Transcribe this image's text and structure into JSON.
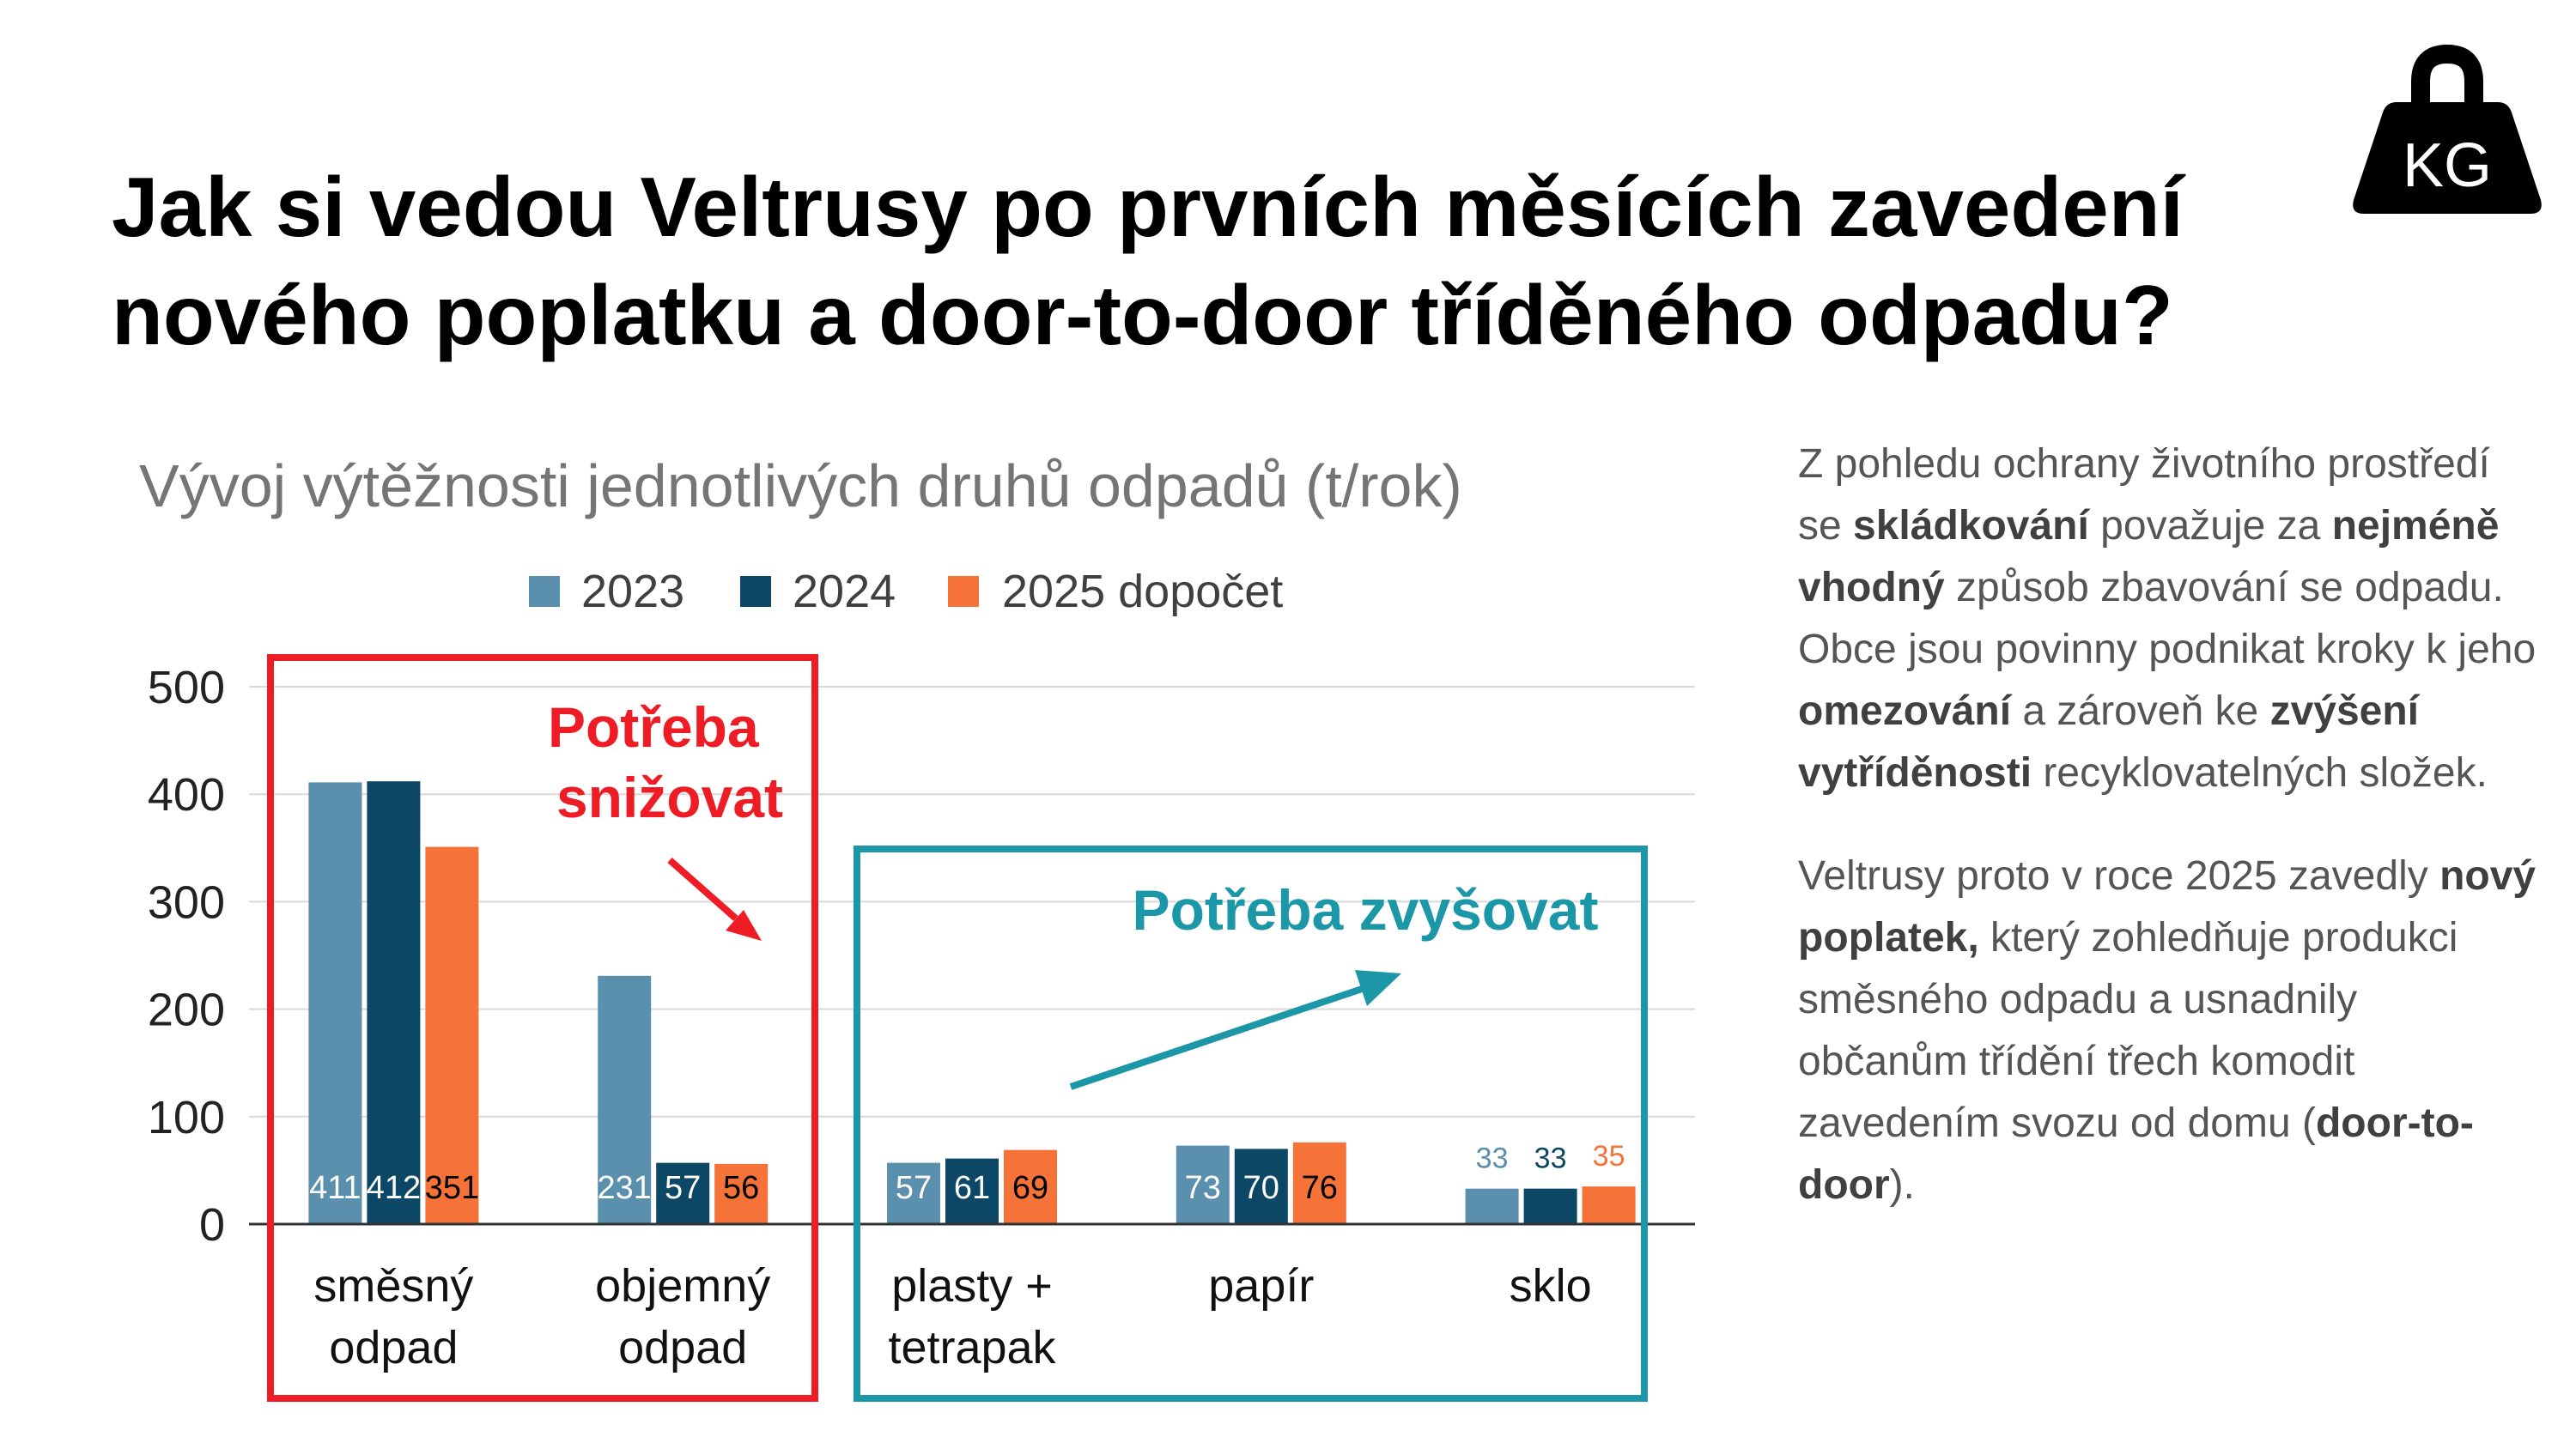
{
  "title": {
    "line1": "Jak si vedou Veltrusy po prvních měsících zavedení",
    "line2": "nového poplatku a door-to-door tříděného odpadu?"
  },
  "icon": {
    "name": "kg-weight-icon",
    "label": "KG"
  },
  "chart_data": {
    "type": "bar",
    "title": "Vývoj výtěžnosti jednotlivých druhů odpadů (t/rok)",
    "categories": [
      [
        "směsný",
        "odpad"
      ],
      [
        "objemný",
        "odpad"
      ],
      [
        "plasty +",
        "tetrapak"
      ],
      [
        "papír"
      ],
      [
        "sklo"
      ]
    ],
    "series": [
      {
        "name": "2023",
        "color": "#5b8fae",
        "values": [
          411,
          231,
          57,
          73,
          33
        ]
      },
      {
        "name": "2024",
        "color": "#0d4766",
        "values": [
          412,
          57,
          61,
          70,
          33
        ]
      },
      {
        "name": "2025 dopočet",
        "color": "#f57338",
        "values": [
          351,
          56,
          69,
          76,
          35
        ]
      }
    ],
    "ylim": [
      0,
      500
    ],
    "yticks": [
      0,
      100,
      200,
      300,
      400,
      500
    ],
    "grid": true,
    "legend": "top",
    "annotations": {
      "decrease": {
        "text": [
          "Potřeba",
          "snižovat"
        ],
        "color": "#ee1c25"
      },
      "increase": {
        "text": "Potřeba zvyšovat",
        "color": "#1b97a8"
      }
    }
  },
  "sidebar": {
    "p1": [
      {
        "t": "Z pohledu ochrany životního prostředí se "
      },
      {
        "t": "skládkování",
        "b": true
      },
      {
        "t": " považuje za "
      },
      {
        "t": "nejméně vhodný",
        "b": true
      },
      {
        "t": " způsob zbavování se odpadu. Obce jsou povinny podnikat kroky k jeho "
      },
      {
        "t": "omezování",
        "b": true
      },
      {
        "t": " a zároveň ke "
      },
      {
        "t": "zvýšení vytříděnosti",
        "b": true
      },
      {
        "t": " recyklovatelných složek."
      }
    ],
    "p2": [
      {
        "t": "Veltrusy proto v roce 2025 zavedly "
      },
      {
        "t": "nový poplatek,",
        "b": true
      },
      {
        "t": " který zohledňuje produkci směsného odpadu a usnadnily občanům třídění třech komodit zavedením svozu od domu ("
      },
      {
        "t": "door-to-door",
        "b": true
      },
      {
        "t": ")."
      }
    ]
  }
}
